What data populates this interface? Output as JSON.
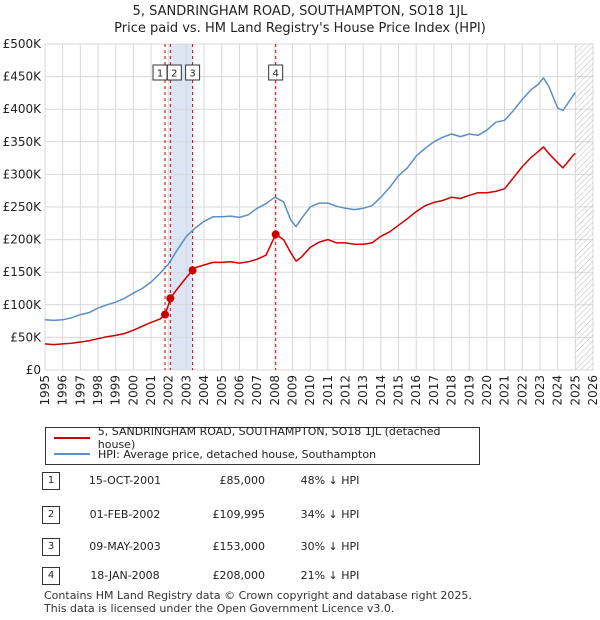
{
  "title": {
    "line1": "5, SANDRINGHAM ROAD, SOUTHAMPTON, SO18 1JL",
    "line2": "Price paid vs. HM Land Registry's House Price Index (HPI)"
  },
  "colors": {
    "property": "#cc0000",
    "hpi": "#5b8ec4",
    "shade": "#dde5f5",
    "grid": "#d8d8d8",
    "vline": "#cc0000"
  },
  "chart_data": {
    "type": "line",
    "xlim": [
      1995,
      2026
    ],
    "ylim": [
      0,
      500000
    ],
    "x_ticks": [
      1995,
      1996,
      1997,
      1998,
      1999,
      2000,
      2001,
      2002,
      2003,
      2004,
      2005,
      2006,
      2007,
      2008,
      2009,
      2010,
      2011,
      2012,
      2013,
      2014,
      2015,
      2016,
      2017,
      2018,
      2019,
      2020,
      2021,
      2022,
      2023,
      2024,
      2025,
      2026
    ],
    "x_tick_labels": [
      "1995",
      "1996",
      "1997",
      "1998",
      "1999",
      "2000",
      "2001",
      "2002",
      "2003",
      "2004",
      "2005",
      "2006",
      "2007",
      "2008",
      "2009",
      "2010",
      "2011",
      "2012",
      "2013",
      "2014",
      "2015",
      "2016",
      "2017",
      "2018",
      "2019",
      "2020",
      "2021",
      "2022",
      "2023",
      "2024",
      "2025",
      "2026"
    ],
    "y_ticks": [
      0,
      50000,
      100000,
      150000,
      200000,
      250000,
      300000,
      350000,
      400000,
      450000,
      500000
    ],
    "y_tick_labels": [
      "£0",
      "£50K",
      "£100K",
      "£150K",
      "£200K",
      "£250K",
      "£300K",
      "£350K",
      "£400K",
      "£450K",
      "£500K"
    ],
    "shaded_span": [
      2002.08,
      2003.35
    ],
    "future_hatch_from": 2025.0,
    "series": [
      {
        "name": "5, SANDRINGHAM ROAD, SOUTHAMPTON, SO18 1JL (detached house)",
        "x": [
          1995.0,
          1995.5,
          1996.0,
          1996.5,
          1997.0,
          1997.5,
          1998.0,
          1998.5,
          1999.0,
          1999.5,
          2000.0,
          2000.5,
          2001.0,
          2001.5,
          2001.79,
          2002.0,
          2002.09,
          2002.5,
          2003.0,
          2003.35,
          2003.5,
          2004.0,
          2004.5,
          2005.0,
          2005.5,
          2006.0,
          2006.5,
          2007.0,
          2007.5,
          2008.05,
          2008.5,
          2008.9,
          2009.2,
          2009.5,
          2010.0,
          2010.5,
          2011.0,
          2011.5,
          2012.0,
          2012.5,
          2013.0,
          2013.5,
          2014.0,
          2014.5,
          2015.0,
          2015.5,
          2016.0,
          2016.5,
          2017.0,
          2017.5,
          2018.0,
          2018.5,
          2019.0,
          2019.5,
          2020.0,
          2020.5,
          2021.0,
          2021.5,
          2022.0,
          2022.5,
          2022.9,
          2023.2,
          2023.5,
          2024.0,
          2024.3,
          2024.6,
          2024.9,
          2025.0
        ],
        "values": [
          40000,
          39000,
          40000,
          41000,
          43000,
          45000,
          48000,
          51000,
          53000,
          56000,
          61000,
          67000,
          73000,
          78000,
          85000,
          101000,
          109995,
          125000,
          142000,
          153000,
          157000,
          161000,
          165000,
          165000,
          166000,
          164000,
          166000,
          170000,
          176000,
          208000,
          200000,
          180000,
          167000,
          173000,
          188000,
          196000,
          200000,
          195000,
          195000,
          193000,
          193000,
          195000,
          205000,
          212000,
          222000,
          232000,
          243000,
          252000,
          257000,
          260000,
          265000,
          263000,
          268000,
          272000,
          272000,
          274000,
          278000,
          295000,
          312000,
          326000,
          335000,
          342000,
          332000,
          318000,
          310000,
          320000,
          330000,
          332000
        ]
      },
      {
        "name": "HPI: Average price, detached house, Southampton",
        "x": [
          1995.0,
          1995.5,
          1996.0,
          1996.5,
          1997.0,
          1997.5,
          1998.0,
          1998.5,
          1999.0,
          1999.5,
          2000.0,
          2000.5,
          2001.0,
          2001.5,
          2002.0,
          2002.5,
          2003.0,
          2003.5,
          2004.0,
          2004.5,
          2005.0,
          2005.5,
          2006.0,
          2006.5,
          2007.0,
          2007.5,
          2008.0,
          2008.5,
          2008.9,
          2009.2,
          2009.5,
          2010.0,
          2010.5,
          2011.0,
          2011.5,
          2012.0,
          2012.5,
          2013.0,
          2013.5,
          2014.0,
          2014.5,
          2015.0,
          2015.5,
          2016.0,
          2016.5,
          2017.0,
          2017.5,
          2018.0,
          2018.5,
          2019.0,
          2019.5,
          2020.0,
          2020.5,
          2021.0,
          2021.5,
          2022.0,
          2022.5,
          2022.9,
          2023.2,
          2023.5,
          2024.0,
          2024.3,
          2024.6,
          2024.9,
          2025.0
        ],
        "values": [
          77000,
          76000,
          77000,
          80000,
          85000,
          88000,
          95000,
          100000,
          104000,
          110000,
          118000,
          125000,
          135000,
          148000,
          163000,
          185000,
          205000,
          218000,
          228000,
          235000,
          235000,
          236000,
          234000,
          238000,
          248000,
          255000,
          265000,
          258000,
          230000,
          220000,
          232000,
          250000,
          256000,
          256000,
          251000,
          248000,
          246000,
          248000,
          252000,
          265000,
          280000,
          298000,
          310000,
          328000,
          340000,
          350000,
          357000,
          362000,
          358000,
          362000,
          360000,
          368000,
          380000,
          383000,
          398000,
          415000,
          430000,
          438000,
          448000,
          435000,
          402000,
          398000,
          410000,
          422000,
          425000
        ]
      }
    ],
    "transactions": [
      {
        "label": "1",
        "x": 2001.79,
        "value": 85000
      },
      {
        "label": "2",
        "x": 2002.09,
        "value": 109995
      },
      {
        "label": "3",
        "x": 2003.35,
        "value": 153000
      },
      {
        "label": "4",
        "x": 2008.05,
        "value": 208000
      }
    ]
  },
  "legend": {
    "property_label": "5, SANDRINGHAM ROAD, SOUTHAMPTON, SO18 1JL (detached house)",
    "hpi_label": "HPI: Average price, detached house, Southampton"
  },
  "table": [
    {
      "badge": "1",
      "date": "15-OCT-2001",
      "price": "£85,000",
      "hpi": "48% ↓ HPI"
    },
    {
      "badge": "2",
      "date": "01-FEB-2002",
      "price": "£109,995",
      "hpi": "34% ↓ HPI"
    },
    {
      "badge": "3",
      "date": "09-MAY-2003",
      "price": "£153,000",
      "hpi": "30% ↓ HPI"
    },
    {
      "badge": "4",
      "date": "18-JAN-2008",
      "price": "£208,000",
      "hpi": "21% ↓ HPI"
    }
  ],
  "footer": {
    "line1": "Contains HM Land Registry data © Crown copyright and database right 2025.",
    "line2": "This data is licensed under the Open Government Licence v3.0."
  }
}
